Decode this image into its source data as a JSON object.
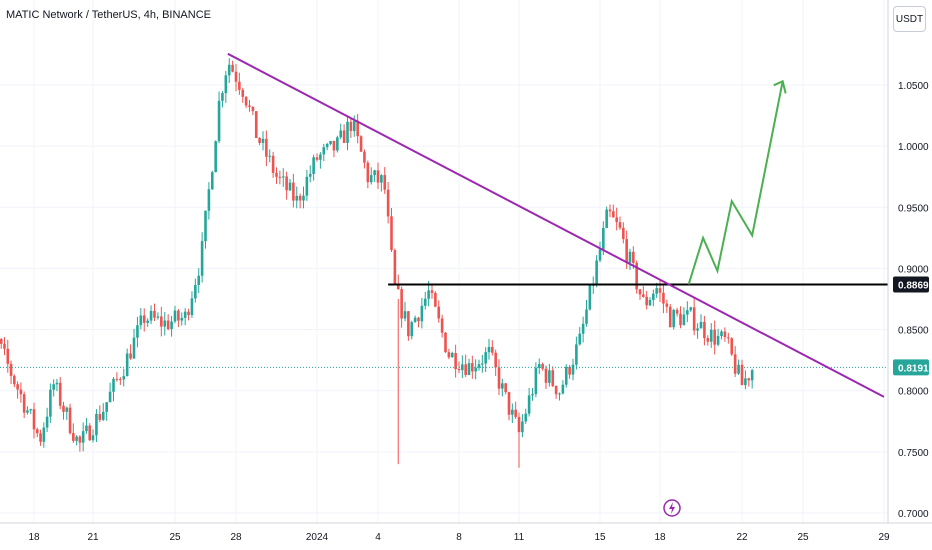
{
  "header": {
    "title": "MATIC Network / TetherUS, 4h, BINANCE",
    "currency_button": "USDT"
  },
  "colors": {
    "up": "#26a69a",
    "down": "#ef5350",
    "trendline": "#9c27b0",
    "level_line": "#000000",
    "projection": "#4caf50",
    "current_price_tag": "#26a69a",
    "grid": "#f0f3fa"
  },
  "chart_data": {
    "type": "candlestick",
    "title": "MATIC Network / TetherUS, 4h, BINANCE",
    "x_ticks": [
      "18",
      "21",
      "25",
      "28",
      "2024",
      "4",
      "8",
      "11",
      "15",
      "18",
      "22",
      "25",
      "29"
    ],
    "y_ticks": [
      0.7,
      0.75,
      0.8,
      0.85,
      0.9,
      0.95,
      1.0,
      1.05
    ],
    "y_tick_labels": [
      "0.7000",
      "0.7500",
      "0.8000",
      "0.8500",
      "0.9000",
      "0.9500",
      "1.0000",
      "1.0500"
    ],
    "ylim": [
      0.695,
      1.095
    ],
    "horizontal_level": {
      "value": 0.8869,
      "label": "0.8869"
    },
    "current_price": {
      "value": 0.8191,
      "label": "0.8191"
    },
    "trendline": {
      "from": {
        "day": 27.6,
        "price": 1.0755
      },
      "to": {
        "day": 60.0,
        "price": 0.795
      }
    },
    "projection_path": [
      {
        "day": 50.4,
        "price": 0.887
      },
      {
        "day": 51.1,
        "price": 0.925
      },
      {
        "day": 51.8,
        "price": 0.898
      },
      {
        "day": 52.5,
        "price": 0.955
      },
      {
        "day": 53.5,
        "price": 0.927
      },
      {
        "day": 55.0,
        "price": 1.053
      }
    ],
    "candle_anchors": [
      {
        "day": 15.0,
        "price": 0.862
      },
      {
        "day": 16.0,
        "price": 0.845
      },
      {
        "day": 17.5,
        "price": 0.79
      },
      {
        "day": 18.3,
        "price": 0.76
      },
      {
        "day": 19.0,
        "price": 0.805
      },
      {
        "day": 20.3,
        "price": 0.755
      },
      {
        "day": 21.5,
        "price": 0.785
      },
      {
        "day": 22.5,
        "price": 0.82
      },
      {
        "day": 23.5,
        "price": 0.86
      },
      {
        "day": 24.5,
        "price": 0.855
      },
      {
        "day": 25.5,
        "price": 0.86
      },
      {
        "day": 26.3,
        "price": 0.91
      },
      {
        "day": 27.2,
        "price": 1.04
      },
      {
        "day": 27.6,
        "price": 1.07
      },
      {
        "day": 28.4,
        "price": 1.045
      },
      {
        "day": 29.0,
        "price": 1.01
      },
      {
        "day": 30.0,
        "price": 0.975
      },
      {
        "day": 31.0,
        "price": 0.955
      },
      {
        "day": 32.0,
        "price": 0.99
      },
      {
        "day": 33.0,
        "price": 1.0
      },
      {
        "day": 33.7,
        "price": 1.02
      },
      {
        "day": 34.5,
        "price": 0.975
      },
      {
        "day": 35.3,
        "price": 0.97
      },
      {
        "day": 35.8,
        "price": 0.885
      },
      {
        "day": 36.5,
        "price": 0.85
      },
      {
        "day": 37.5,
        "price": 0.88
      },
      {
        "day": 38.5,
        "price": 0.83
      },
      {
        "day": 39.5,
        "price": 0.82
      },
      {
        "day": 40.5,
        "price": 0.83
      },
      {
        "day": 41.4,
        "price": 0.79
      },
      {
        "day": 42.0,
        "price": 0.765
      },
      {
        "day": 43.0,
        "price": 0.82
      },
      {
        "day": 44.0,
        "price": 0.8
      },
      {
        "day": 45.0,
        "price": 0.84
      },
      {
        "day": 45.8,
        "price": 0.9
      },
      {
        "day": 46.4,
        "price": 0.945
      },
      {
        "day": 47.0,
        "price": 0.93
      },
      {
        "day": 47.6,
        "price": 0.9
      },
      {
        "day": 48.2,
        "price": 0.87
      },
      {
        "day": 48.8,
        "price": 0.885
      },
      {
        "day": 49.5,
        "price": 0.86
      },
      {
        "day": 50.5,
        "price": 0.86
      },
      {
        "day": 51.5,
        "price": 0.845
      },
      {
        "day": 52.2,
        "price": 0.84
      },
      {
        "day": 53.0,
        "price": 0.805
      },
      {
        "day": 53.5,
        "price": 0.818
      }
    ]
  }
}
